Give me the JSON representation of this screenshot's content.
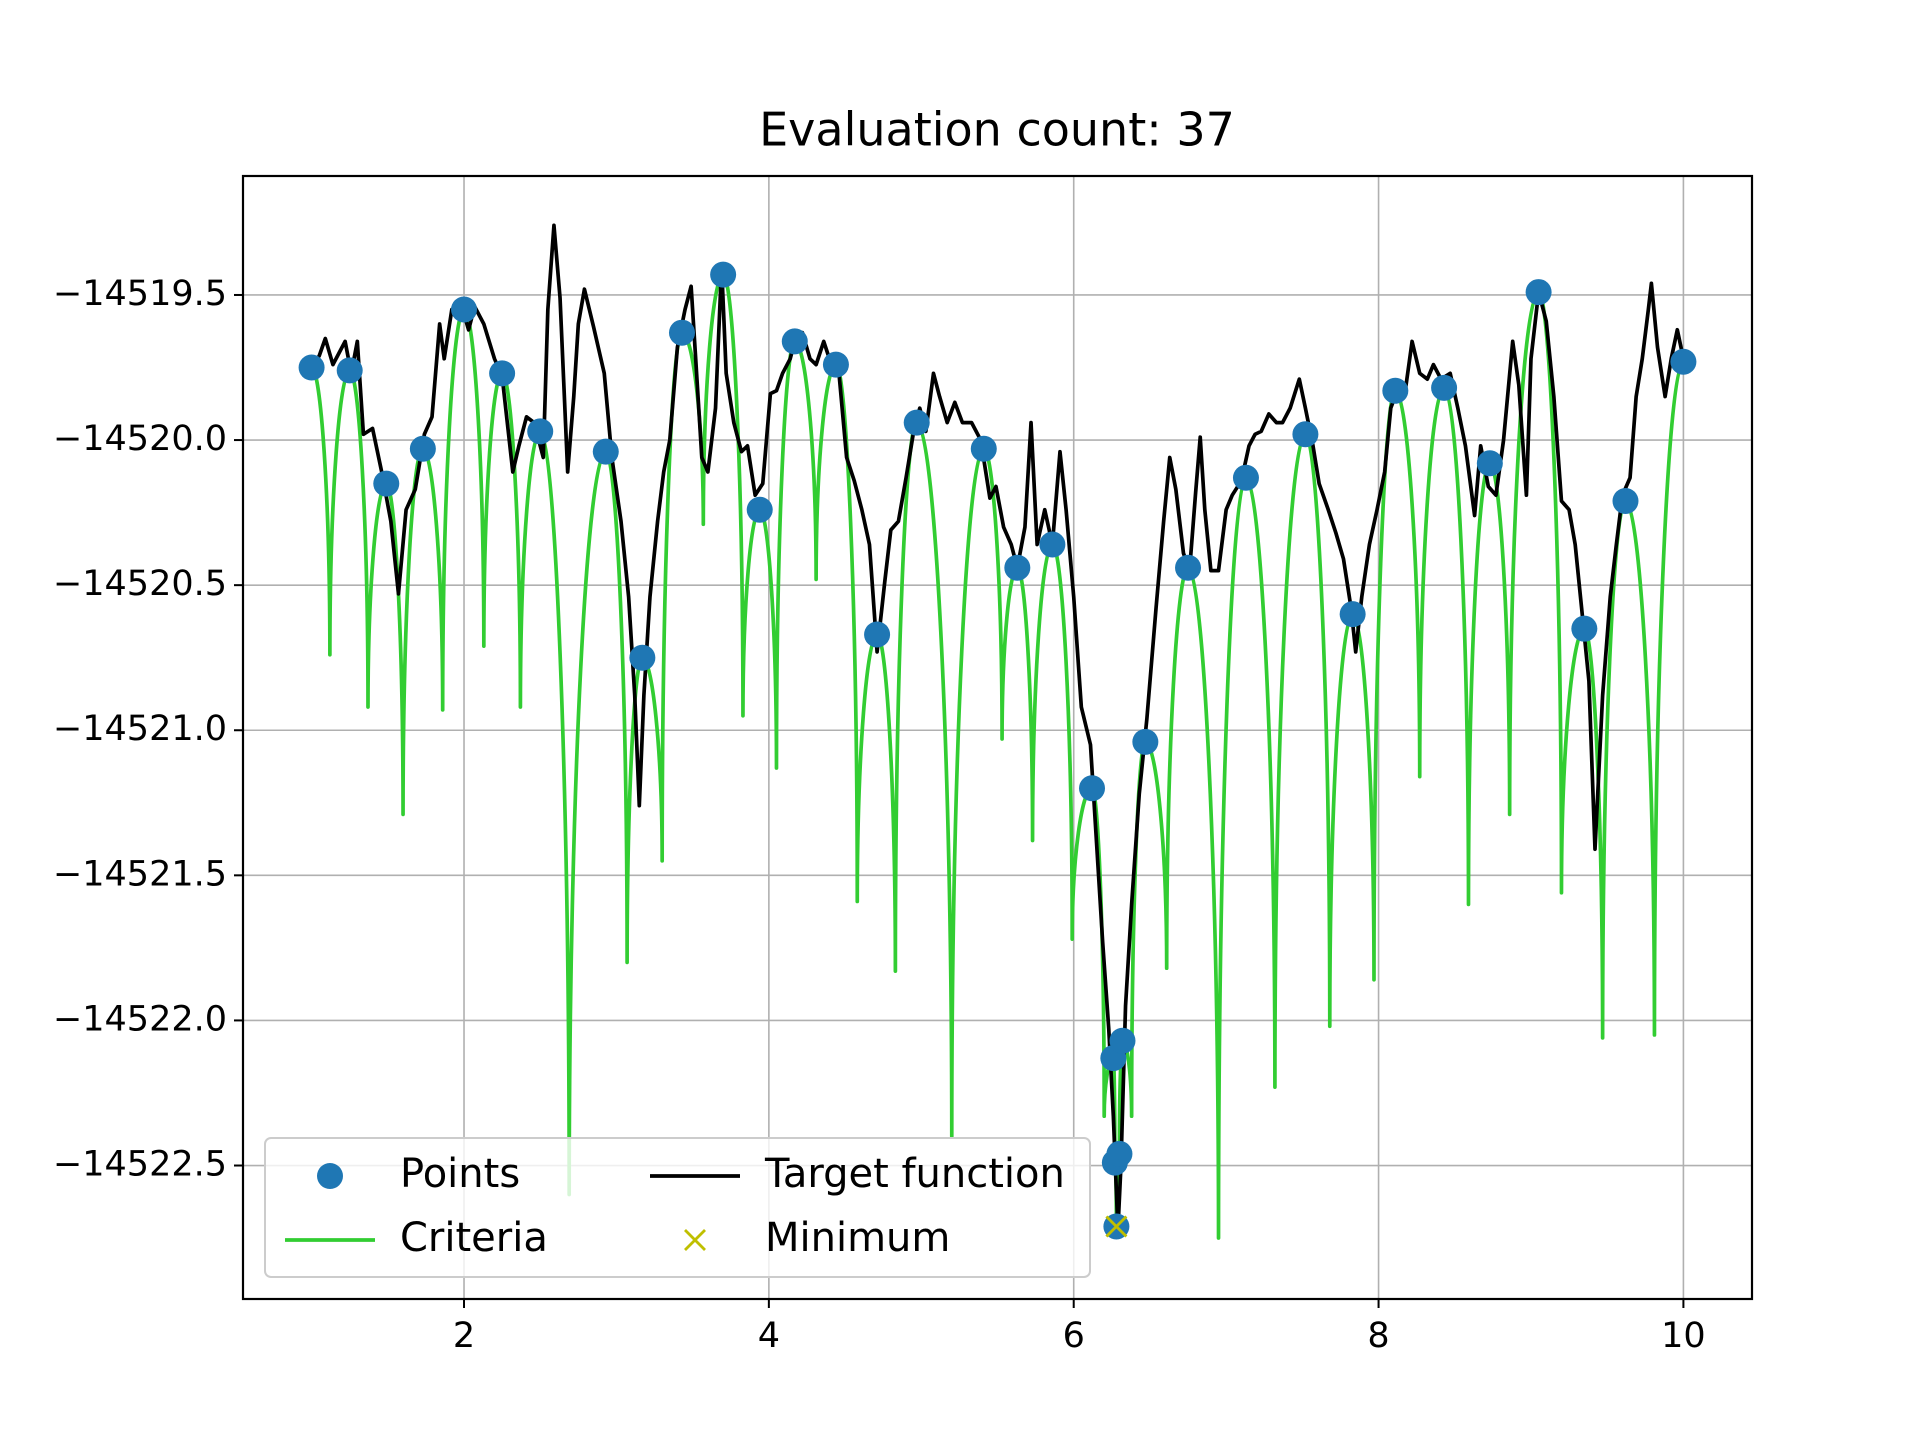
{
  "chart_data": {
    "type": "line",
    "title": "Evaluation count: 37",
    "xlim": [
      0.55,
      10.45
    ],
    "ylim": [
      -14522.96,
      -14519.09
    ],
    "xticks": [
      2,
      4,
      6,
      8,
      10
    ],
    "yticks": [
      {
        "value": -14519.5,
        "label": "−14519.5"
      },
      {
        "value": -14520,
        "label": "−14520.0"
      },
      {
        "value": -14520.5,
        "label": "−14520.5"
      },
      {
        "value": -14521,
        "label": "−14521.0"
      },
      {
        "value": -14521.5,
        "label": "−14521.5"
      },
      {
        "value": -14522,
        "label": "−14522.0"
      },
      {
        "value": -14522.5,
        "label": "−14522.5"
      }
    ],
    "grid": true,
    "legend": "lower left",
    "series": [
      {
        "name": "Points",
        "type": "scatter",
        "color": "#1f77b4",
        "x": [
          1.0,
          1.25,
          1.49,
          1.73,
          2.0,
          2.25,
          2.5,
          2.93,
          3.17,
          3.43,
          3.7,
          3.94,
          4.17,
          4.44,
          4.71,
          4.97,
          5.41,
          5.63,
          5.86,
          6.12,
          6.26,
          6.27,
          6.28,
          6.3,
          6.32,
          6.47,
          6.75,
          7.13,
          7.52,
          7.83,
          8.11,
          8.43,
          8.73,
          9.05,
          9.35,
          9.62,
          10.0
        ],
        "values": [
          -14519.75,
          -14519.76,
          -14520.15,
          -14520.03,
          -14519.55,
          -14519.77,
          -14519.97,
          -14520.04,
          -14520.75,
          -14519.63,
          -14519.43,
          -14520.24,
          -14519.66,
          -14519.74,
          -14520.67,
          -14519.94,
          -14520.03,
          -14520.44,
          -14520.36,
          -14521.2,
          -14522.13,
          -14522.49,
          -14522.71,
          -14522.46,
          -14522.07,
          -14521.04,
          -14520.44,
          -14520.13,
          -14519.98,
          -14520.6,
          -14519.83,
          -14519.82,
          -14520.08,
          -14519.49,
          -14520.65,
          -14520.21,
          -14519.73
        ]
      },
      {
        "name": "Criteria",
        "type": "cusp",
        "color": "#32cd32",
        "x": [
          1.0,
          1.12,
          1.25,
          1.37,
          1.49,
          1.6,
          1.73,
          1.86,
          2.0,
          2.13,
          2.25,
          2.37,
          2.5,
          2.69,
          2.93,
          3.07,
          3.17,
          3.3,
          3.43,
          3.57,
          3.7,
          3.83,
          3.94,
          4.05,
          4.17,
          4.31,
          4.44,
          4.58,
          4.71,
          4.83,
          4.97,
          5.2,
          5.41,
          5.53,
          5.63,
          5.73,
          5.86,
          5.99,
          6.12,
          6.2,
          6.26,
          6.27,
          6.28,
          6.3,
          6.32,
          6.38,
          6.47,
          6.61,
          6.75,
          6.95,
          7.13,
          7.32,
          7.52,
          7.68,
          7.83,
          7.97,
          8.11,
          8.27,
          8.43,
          8.59,
          8.73,
          8.86,
          9.05,
          9.2,
          9.35,
          9.47,
          9.62,
          9.81,
          10.0
        ],
        "values": [
          -14519.75,
          -14520.74,
          -14519.76,
          -14520.92,
          -14520.15,
          -14521.29,
          -14520.03,
          -14520.93,
          -14519.55,
          -14520.71,
          -14519.77,
          -14520.92,
          -14519.97,
          -14522.6,
          -14520.04,
          -14521.8,
          -14520.75,
          -14521.45,
          -14519.63,
          -14520.29,
          -14519.43,
          -14520.95,
          -14520.24,
          -14521.13,
          -14519.66,
          -14520.48,
          -14519.74,
          -14521.59,
          -14520.67,
          -14521.83,
          -14519.94,
          -14522.4,
          -14520.03,
          -14521.03,
          -14520.44,
          -14521.38,
          -14520.36,
          -14521.72,
          -14521.2,
          -14522.33,
          -14522.13,
          -14522.49,
          -14522.71,
          -14522.46,
          -14522.07,
          -14522.33,
          -14521.04,
          -14521.82,
          -14520.44,
          -14522.75,
          -14520.13,
          -14522.23,
          -14519.98,
          -14522.02,
          -14520.6,
          -14521.86,
          -14519.83,
          -14521.16,
          -14519.82,
          -14521.6,
          -14520.08,
          -14521.29,
          -14519.49,
          -14521.56,
          -14520.65,
          -14522.06,
          -14520.21,
          -14522.05,
          -14519.73
        ]
      },
      {
        "name": "Target function",
        "type": "line",
        "color": "#000000",
        "x": [
          1.0,
          1.05,
          1.09,
          1.14,
          1.18,
          1.22,
          1.26,
          1.3,
          1.34,
          1.4,
          1.46,
          1.52,
          1.57,
          1.62,
          1.68,
          1.74,
          1.79,
          1.84,
          1.87,
          1.92,
          1.98,
          2.03,
          2.07,
          2.13,
          2.2,
          2.25,
          2.32,
          2.36,
          2.41,
          2.46,
          2.52,
          2.55,
          2.59,
          2.63,
          2.68,
          2.72,
          2.75,
          2.79,
          2.85,
          2.92,
          2.97,
          3.03,
          3.08,
          3.12,
          3.15,
          3.18,
          3.22,
          3.27,
          3.31,
          3.35,
          3.4,
          3.45,
          3.49,
          3.52,
          3.56,
          3.6,
          3.65,
          3.69,
          3.72,
          3.77,
          3.82,
          3.86,
          3.91,
          3.96,
          4.01,
          4.05,
          4.09,
          4.14,
          4.18,
          4.22,
          4.27,
          4.31,
          4.36,
          4.41,
          4.46,
          4.51,
          4.56,
          4.61,
          4.66,
          4.71,
          4.76,
          4.8,
          4.85,
          4.9,
          4.95,
          4.99,
          5.03,
          5.08,
          5.12,
          5.17,
          5.22,
          5.27,
          5.33,
          5.39,
          5.45,
          5.49,
          5.54,
          5.59,
          5.63,
          5.68,
          5.72,
          5.76,
          5.81,
          5.86,
          5.91,
          5.95,
          6.0,
          6.05,
          6.11,
          6.15,
          6.19,
          6.23,
          6.26,
          6.29,
          6.31,
          6.34,
          6.38,
          6.43,
          6.48,
          6.54,
          6.59,
          6.63,
          6.67,
          6.72,
          6.76,
          6.8,
          6.83,
          6.86,
          6.9,
          6.95,
          7.0,
          7.04,
          7.1,
          7.15,
          7.19,
          7.23,
          7.28,
          7.33,
          7.37,
          7.42,
          7.48,
          7.52,
          7.57,
          7.61,
          7.67,
          7.72,
          7.77,
          7.82,
          7.85,
          7.89,
          7.94,
          7.99,
          8.04,
          8.08,
          8.13,
          8.17,
          8.22,
          8.27,
          8.32,
          8.36,
          8.41,
          8.47,
          8.52,
          8.57,
          8.63,
          8.67,
          8.72,
          8.77,
          8.82,
          8.88,
          8.92,
          8.97,
          9.0,
          9.05,
          9.1,
          9.15,
          9.2,
          9.25,
          9.29,
          9.34,
          9.38,
          9.42,
          9.47,
          9.52,
          9.56,
          9.6,
          9.65,
          9.69,
          9.73,
          9.77,
          9.79,
          9.83,
          9.88,
          9.92,
          9.96,
          10.0
        ],
        "values": [
          -14519.75,
          -14519.71,
          -14519.65,
          -14519.74,
          -14519.7,
          -14519.66,
          -14519.77,
          -14519.66,
          -14519.98,
          -14519.96,
          -14520.11,
          -14520.28,
          -14520.53,
          -14520.24,
          -14520.17,
          -14519.98,
          -14519.92,
          -14519.6,
          -14519.72,
          -14519.55,
          -14519.53,
          -14519.62,
          -14519.54,
          -14519.6,
          -14519.72,
          -14519.78,
          -14520.11,
          -14520.02,
          -14519.92,
          -14519.94,
          -14520.06,
          -14519.55,
          -14519.26,
          -14519.51,
          -14520.11,
          -14519.85,
          -14519.6,
          -14519.48,
          -14519.61,
          -14519.77,
          -14520.06,
          -14520.28,
          -14520.54,
          -14520.88,
          -14521.26,
          -14520.88,
          -14520.54,
          -14520.28,
          -14520.11,
          -14520,
          -14519.68,
          -14519.55,
          -14519.47,
          -14519.72,
          -14520.06,
          -14520.11,
          -14519.89,
          -14519.4,
          -14519.77,
          -14519.94,
          -14520.04,
          -14520.02,
          -14520.19,
          -14520.15,
          -14519.84,
          -14519.83,
          -14519.77,
          -14519.72,
          -14519.64,
          -14519.63,
          -14519.72,
          -14519.74,
          -14519.66,
          -14519.74,
          -14519.77,
          -14520.06,
          -14520.14,
          -14520.24,
          -14520.36,
          -14520.73,
          -14520.49,
          -14520.31,
          -14520.28,
          -14520.13,
          -14519.97,
          -14519.89,
          -14519.97,
          -14519.77,
          -14519.85,
          -14519.94,
          -14519.87,
          -14519.94,
          -14519.94,
          -14520,
          -14520.2,
          -14520.16,
          -14520.3,
          -14520.36,
          -14520.44,
          -14520.3,
          -14519.94,
          -14520.36,
          -14520.24,
          -14520.36,
          -14520.04,
          -14520.24,
          -14520.54,
          -14520.92,
          -14521.05,
          -14521.39,
          -14521.73,
          -14522.03,
          -14522.33,
          -14522.72,
          -14522.5,
          -14521.95,
          -14521.6,
          -14521.22,
          -14520.96,
          -14520.58,
          -14520.28,
          -14520.06,
          -14520.17,
          -14520.39,
          -14520.45,
          -14520.18,
          -14519.99,
          -14520.24,
          -14520.45,
          -14520.45,
          -14520.24,
          -14520.19,
          -14520.14,
          -14520.02,
          -14519.98,
          -14519.97,
          -14519.91,
          -14519.94,
          -14519.94,
          -14519.89,
          -14519.79,
          -14519.89,
          -14520.02,
          -14520.15,
          -14520.24,
          -14520.32,
          -14520.41,
          -14520.58,
          -14520.73,
          -14520.54,
          -14520.36,
          -14520.24,
          -14520.11,
          -14519.89,
          -14519.82,
          -14519.85,
          -14519.66,
          -14519.77,
          -14519.79,
          -14519.74,
          -14519.79,
          -14519.77,
          -14519.89,
          -14520.02,
          -14520.26,
          -14520.02,
          -14520.16,
          -14520.19,
          -14520,
          -14519.66,
          -14519.81,
          -14520.19,
          -14519.72,
          -14519.49,
          -14519.59,
          -14519.85,
          -14520.21,
          -14520.24,
          -14520.36,
          -14520.62,
          -14520.83,
          -14521.41,
          -14520.88,
          -14520.54,
          -14520.36,
          -14520.19,
          -14520.13,
          -14519.85,
          -14519.72,
          -14519.55,
          -14519.46,
          -14519.68,
          -14519.85,
          -14519.72,
          -14519.62,
          -14519.72
        ]
      },
      {
        "name": "Minimum",
        "type": "cross",
        "color": "#bfbf00",
        "x": [
          6.28
        ],
        "values": [
          -14522.71
        ]
      }
    ]
  }
}
